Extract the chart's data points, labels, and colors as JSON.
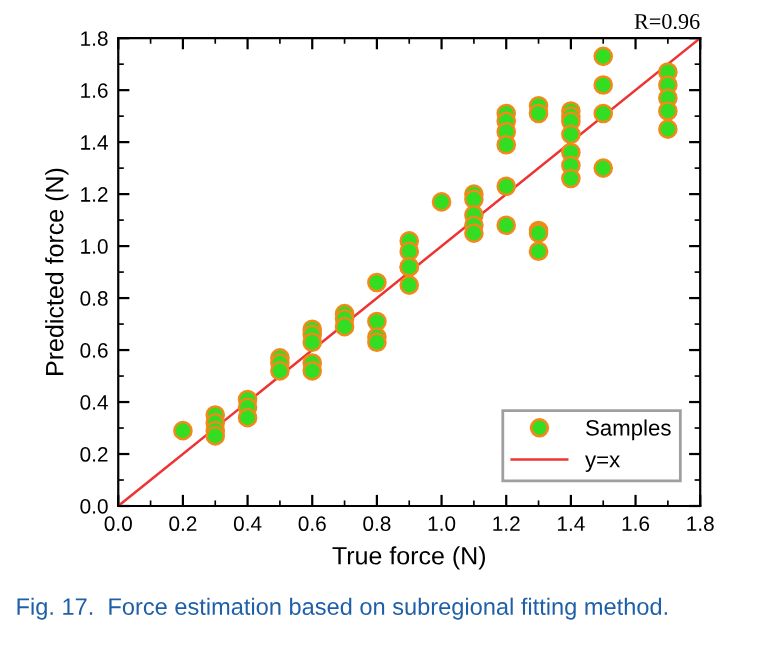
{
  "chart_data": {
    "type": "scatter",
    "xlabel": "True force (N)",
    "ylabel": "Predicted force (N)",
    "series": [
      {
        "name": "Samples",
        "color": "#33dd22",
        "marker": "circle",
        "x": [
          0.2,
          0.3,
          0.3,
          0.3,
          0.3,
          0.4,
          0.4,
          0.4,
          0.5,
          0.5,
          0.5,
          0.6,
          0.6,
          0.6,
          0.6,
          0.6,
          0.7,
          0.7,
          0.7,
          0.8,
          0.8,
          0.8,
          0.8,
          0.9,
          0.9,
          0.9,
          0.9,
          0.9,
          1.0,
          1.1,
          1.1,
          1.1,
          1.1,
          1.1,
          1.2,
          1.2,
          1.2,
          1.2,
          1.2,
          1.2,
          1.3,
          1.3,
          1.3,
          1.3,
          1.3,
          1.4,
          1.4,
          1.4,
          1.4,
          1.4,
          1.4,
          1.4,
          1.5,
          1.5,
          1.5,
          1.5,
          1.7,
          1.7,
          1.7,
          1.7,
          1.7
        ],
        "values": [
          0.29,
          0.35,
          0.32,
          0.29,
          0.27,
          0.41,
          0.38,
          0.34,
          0.57,
          0.55,
          0.52,
          0.68,
          0.66,
          0.63,
          0.55,
          0.52,
          0.74,
          0.72,
          0.69,
          0.86,
          0.71,
          0.65,
          0.63,
          1.02,
          0.98,
          0.92,
          0.92,
          0.85,
          1.17,
          1.2,
          1.18,
          1.12,
          1.08,
          1.05,
          1.51,
          1.48,
          1.44,
          1.39,
          1.23,
          1.08,
          1.54,
          1.51,
          1.06,
          1.05,
          0.98,
          1.52,
          1.5,
          1.48,
          1.43,
          1.36,
          1.31,
          1.26,
          1.73,
          1.62,
          1.51,
          1.3,
          1.67,
          1.62,
          1.57,
          1.52,
          1.45
        ]
      },
      {
        "name": "y=x",
        "type": "line",
        "color": "#ee3333",
        "x": [
          0,
          1.8
        ],
        "values": [
          0,
          1.8
        ]
      }
    ],
    "xlim": [
      0,
      1.8
    ],
    "ylim": [
      0,
      1.8
    ],
    "xticks": [
      {
        "value": 0,
        "label": "0.0"
      },
      0.2,
      0.4,
      0.6,
      0.8,
      {
        "value": 1,
        "label": "1.0"
      },
      1.2,
      1.4,
      1.6,
      1.8
    ],
    "yticks": [
      {
        "value": 0,
        "label": "0.0"
      },
      0.2,
      0.4,
      0.6,
      0.8,
      {
        "value": 1,
        "label": "1.0"
      },
      1.2,
      1.4,
      1.6,
      1.8
    ],
    "grid": false,
    "legend": "bottom right",
    "annotations": [
      "R=0.96",
      "Fig. 17.  Force estimation based on subregional fitting method."
    ]
  }
}
